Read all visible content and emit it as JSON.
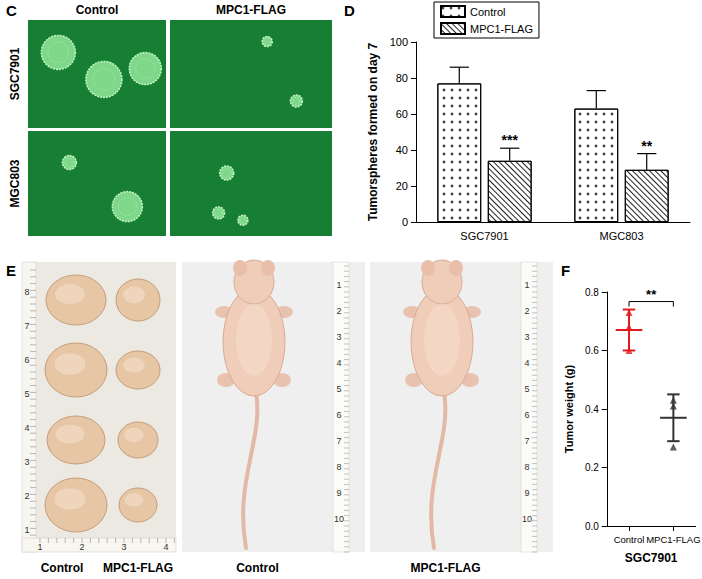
{
  "panels": {
    "C": {
      "label": "C",
      "columns": [
        "Control",
        "MPC1-FLAG"
      ],
      "rows": [
        "SGC7901",
        "MGC803"
      ]
    },
    "E": {
      "label": "E",
      "tumor_photo": {
        "ruler_y": [
          1,
          2,
          3,
          4,
          5,
          6,
          7,
          8
        ],
        "ruler_x": [
          1,
          2,
          3,
          4
        ],
        "captions": [
          "Control",
          "MPC1-FLAG"
        ]
      },
      "mouse_photos": [
        {
          "caption": "Control",
          "ruler": [
            1,
            2,
            3,
            4,
            5,
            6,
            7,
            8,
            9,
            10
          ]
        },
        {
          "caption": "MPC1-FLAG",
          "ruler": [
            1,
            2,
            3,
            4,
            5,
            6,
            7,
            8,
            9,
            10
          ]
        }
      ]
    }
  },
  "chart_data": [
    {
      "panel": "D",
      "type": "bar",
      "categories": [
        "SGC7901",
        "MGC803"
      ],
      "series": [
        {
          "name": "Control",
          "color": "#ffffff",
          "values": [
            77,
            63
          ],
          "errors": [
            9,
            10
          ]
        },
        {
          "name": "MPC1-FLAG",
          "color": "#ffffff",
          "values": [
            34,
            29
          ],
          "errors": [
            7,
            9
          ],
          "significance": [
            "***",
            "**"
          ]
        }
      ],
      "ylabel": "Tumorspheres formed on day 7",
      "ylim": [
        0,
        100
      ],
      "yticks": [
        0,
        20,
        40,
        60,
        80,
        100
      ],
      "grid": false,
      "legend": "top-left"
    },
    {
      "panel": "F",
      "type": "scatter",
      "categories": [
        "Control",
        "MPC1-FLAG"
      ],
      "values": [
        [
          0.73,
          0.6,
          0.68
        ],
        [
          0.41,
          0.43,
          0.27
        ]
      ],
      "means": [
        0.67,
        0.37
      ],
      "sd": [
        0.07,
        0.08
      ],
      "colors": [
        "#e31a1c",
        "#333333"
      ],
      "marker": "triangle",
      "xlabel": "SGC7901",
      "ylabel": "Tumor weight (g)",
      "ylim": [
        0,
        0.8
      ],
      "yticks": [
        {
          "value": 0,
          "label": "0.0"
        },
        0.2,
        0.4,
        0.6,
        0.8
      ],
      "grid": false,
      "significance": "**"
    }
  ]
}
